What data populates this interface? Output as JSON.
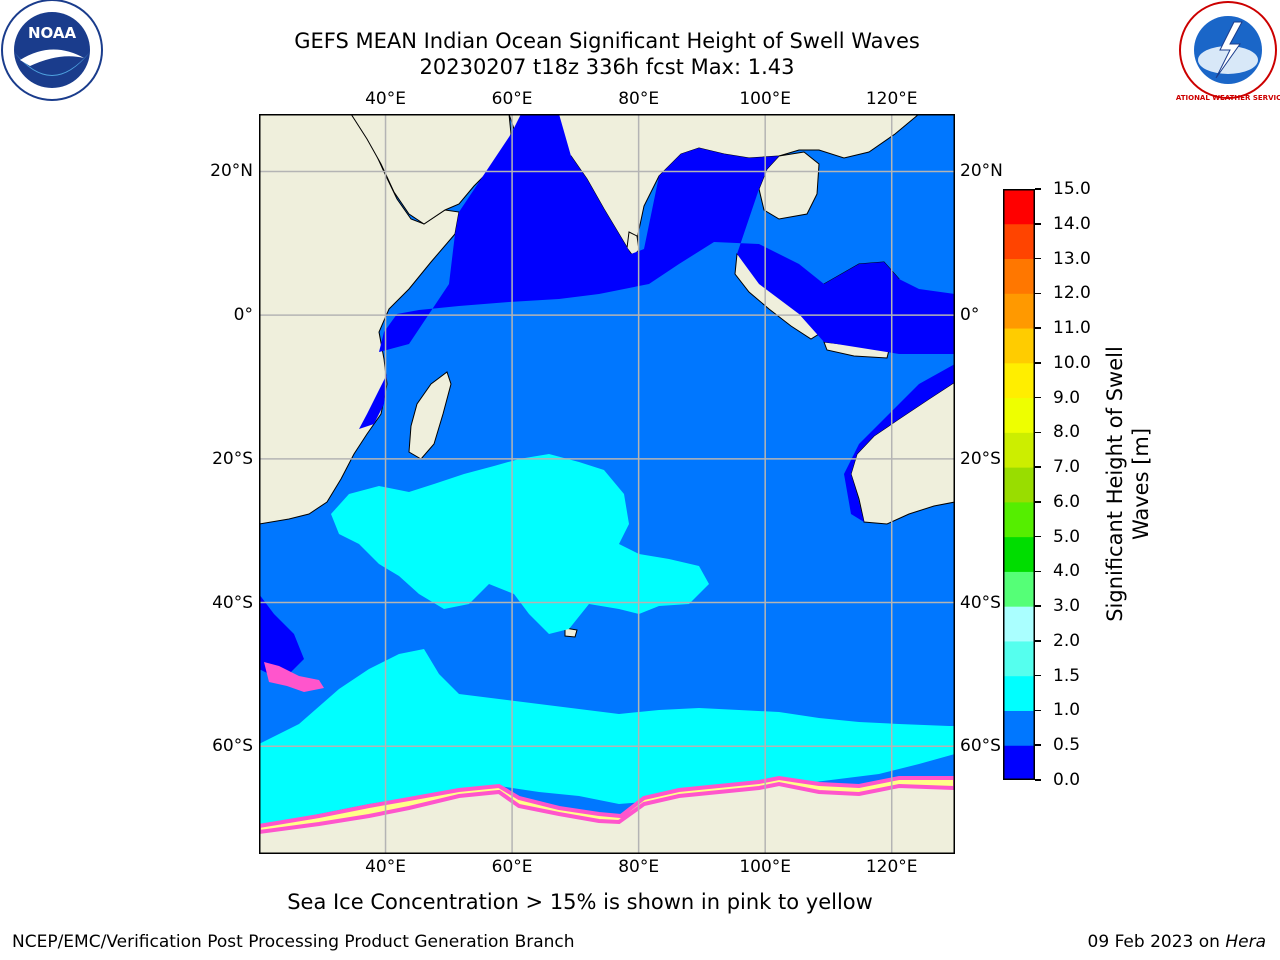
{
  "title": {
    "line1": "GEFS MEAN Indian Ocean Significant Height of Swell Waves",
    "line2": "20230207 t18z 336h fcst   Max: 1.43"
  },
  "map": {
    "lon_range": [
      20,
      130
    ],
    "lat_range": [
      -75,
      28
    ],
    "lon_ticks": [
      {
        "value": 40,
        "label": "40°E"
      },
      {
        "value": 60,
        "label": "60°E"
      },
      {
        "value": 80,
        "label": "80°E"
      },
      {
        "value": 100,
        "label": "100°E"
      },
      {
        "value": 120,
        "label": "120°E"
      }
    ],
    "lat_ticks": [
      {
        "value": 20,
        "label": "20°N"
      },
      {
        "value": 0,
        "label": "0°"
      },
      {
        "value": -20,
        "label": "20°S"
      },
      {
        "value": -40,
        "label": "40°S"
      },
      {
        "value": -60,
        "label": "60°S"
      }
    ],
    "colors": {
      "land": "#efefdc",
      "grid": "#b4b4b4",
      "coast": "#000000"
    }
  },
  "colorbar": {
    "label": "Significant Height of Swell Waves [m]",
    "label_line1": "Significant Height of Swell",
    "label_line2": "Waves [m]",
    "levels": [
      "0.0",
      "0.5",
      "1.0",
      "1.5",
      "2.0",
      "3.0",
      "4.0",
      "5.0",
      "6.0",
      "7.0",
      "8.0",
      "9.0",
      "10.0",
      "11.0",
      "12.0",
      "13.0",
      "14.0",
      "15.0"
    ],
    "colors": [
      "#0000ff",
      "#0077ff",
      "#00ffff",
      "#55ffee",
      "#aaffff",
      "#55ff77",
      "#00dd00",
      "#55ee00",
      "#99dd00",
      "#ccee00",
      "#eeff00",
      "#ffee00",
      "#ffcc00",
      "#ff9900",
      "#ff7700",
      "#ff4400",
      "#ff0000"
    ]
  },
  "swell_colors": {
    "low": "#0000ff",
    "mid": "#0077ff",
    "high": "#00ffff",
    "ice": "#ff55cc",
    "ice_edge": "#ffff88"
  },
  "logos": {
    "left_text": "NOAA",
    "right_text": "NATIONAL WEATHER SERVICE"
  },
  "caption": "Sea Ice Concentration > 15% is shown in pink to yellow",
  "footer": {
    "left": "NCEP/EMC/Verification Post Processing Product Generation Branch",
    "right_date": "09 Feb 2023 on ",
    "right_machine": "Hera"
  }
}
